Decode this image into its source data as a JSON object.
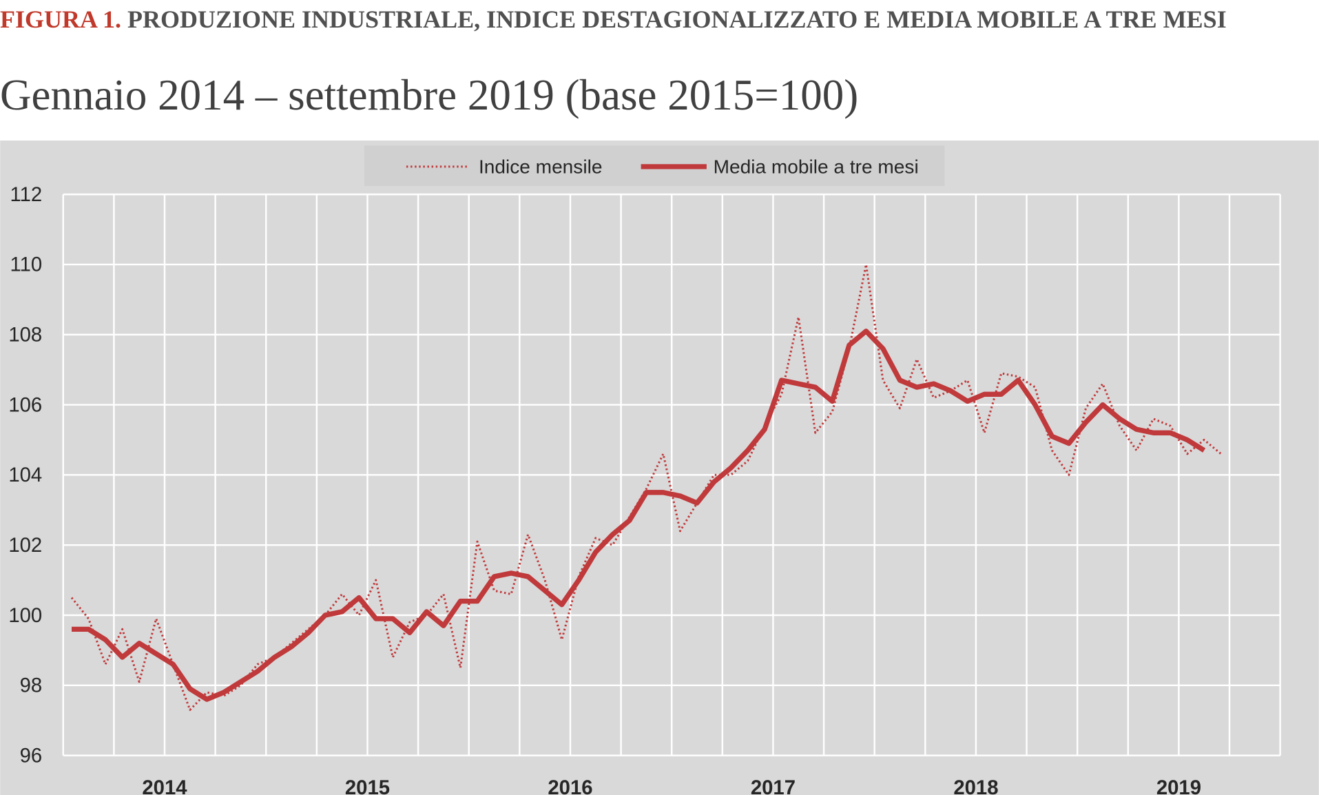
{
  "chart_data": {
    "type": "line",
    "title_prefix": "FIGURA 1.",
    "title": "PRODUZIONE INDUSTRIALE, INDICE DESTAGIONALIZZATO E MEDIA MOBILE A TRE MESI",
    "subtitle": "Gennaio 2014 – settembre 2019 (base 2015=100)",
    "categories": [
      null,
      null,
      null,
      null,
      null,
      "2014",
      null,
      null,
      null,
      null,
      null,
      null,
      null,
      null,
      null,
      null,
      null,
      "2015",
      null,
      null,
      null,
      null,
      null,
      null,
      null,
      null,
      null,
      null,
      null,
      "2016",
      null,
      null,
      null,
      null,
      null,
      null,
      null,
      null,
      null,
      null,
      null,
      "2017",
      null,
      null,
      null,
      null,
      null,
      null,
      null,
      null,
      null,
      null,
      null,
      "2018",
      null,
      null,
      null,
      null,
      null,
      null,
      null,
      null,
      null,
      null,
      null,
      "2019",
      null,
      null,
      null
    ],
    "series": [
      {
        "name": "Indice mensile",
        "color": "#c0393b",
        "style": "dotted",
        "values": [
          100.5,
          99.9,
          98.6,
          99.6,
          98.1,
          99.9,
          98.6,
          97.3,
          97.8,
          97.7,
          98.0,
          98.6,
          98.8,
          99.2,
          99.6,
          100.0,
          100.6,
          100.0,
          101.0,
          98.8,
          99.8,
          100.0,
          100.6,
          98.5,
          102.1,
          100.7,
          100.6,
          102.3,
          101.0,
          99.3,
          101.1,
          102.2,
          102.0,
          102.8,
          103.6,
          104.6,
          102.4,
          103.2,
          104.0,
          104.0,
          104.4,
          105.4,
          106.3,
          108.5,
          105.2,
          105.8,
          107.6,
          110.0,
          106.7,
          105.9,
          107.3,
          106.2,
          106.4,
          106.7,
          105.2,
          106.9,
          106.8,
          106.5,
          104.7,
          104.0,
          105.9,
          106.6,
          105.4,
          104.7,
          105.6,
          105.4,
          104.6,
          105.0,
          104.6
        ]
      },
      {
        "name": "Media mobile a tre mesi",
        "color": "#c0393b",
        "style": "solid",
        "values": [
          99.6,
          99.6,
          99.3,
          98.8,
          99.2,
          98.9,
          98.6,
          97.9,
          97.6,
          97.8,
          98.1,
          98.4,
          98.8,
          99.1,
          99.5,
          100.0,
          100.1,
          100.5,
          99.9,
          99.9,
          99.5,
          100.1,
          99.7,
          100.4,
          100.4,
          101.1,
          101.2,
          101.1,
          100.7,
          100.3,
          101.0,
          101.8,
          102.3,
          102.7,
          103.5,
          103.5,
          103.4,
          103.2,
          103.8,
          104.2,
          104.7,
          105.3,
          106.7,
          106.6,
          106.5,
          106.1,
          107.7,
          108.1,
          107.6,
          106.7,
          106.5,
          106.6,
          106.4,
          106.1,
          106.3,
          106.3,
          106.7,
          106.0,
          105.1,
          104.9,
          105.5,
          106.0,
          105.6,
          105.3,
          105.2,
          105.2,
          105.0,
          104.7,
          null
        ]
      }
    ],
    "ylim": [
      96,
      112
    ],
    "yticks": [
      96,
      98,
      100,
      102,
      104,
      106,
      108,
      110,
      112
    ],
    "grid": true,
    "legend": "top"
  }
}
